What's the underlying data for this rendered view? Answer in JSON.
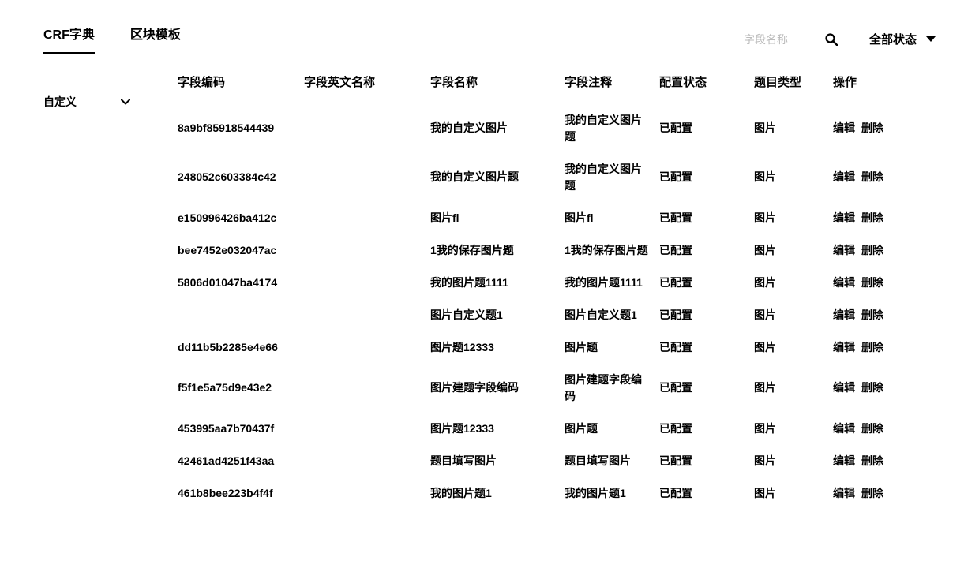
{
  "tabs": {
    "crf_dict": "CRF字典",
    "block_template": "区块模板"
  },
  "search": {
    "placeholder": "字段名称"
  },
  "status_filter": {
    "label": "全部状态"
  },
  "sidebar": {
    "item_custom": "自定义"
  },
  "table": {
    "headers": {
      "code": "字段编码",
      "en_name": "字段英文名称",
      "name": "字段名称",
      "note": "字段注释",
      "config_status": "配置状态",
      "question_type": "题目类型",
      "actions": "操作"
    },
    "action_edit": "编辑",
    "action_delete": "删除",
    "rows": [
      {
        "code": "8a9bf85918544439",
        "en_name": "",
        "name": "我的自定义图片",
        "note": "我的自定义图片题",
        "status": "已配置",
        "type": "图片"
      },
      {
        "code": "248052c603384c42",
        "en_name": "",
        "name": "我的自定义图片题",
        "note": "我的自定义图片题",
        "status": "已配置",
        "type": "图片"
      },
      {
        "code": "e150996426ba412c",
        "en_name": "",
        "name": "图片fl",
        "note": "图片fl",
        "status": "已配置",
        "type": "图片"
      },
      {
        "code": "bee7452e032047ac",
        "en_name": "",
        "name": "1我的保存图片题",
        "note": "1我的保存图片题",
        "status": "已配置",
        "type": "图片"
      },
      {
        "code": "5806d01047ba4174",
        "en_name": "",
        "name": "我的图片题1111",
        "note": "我的图片题1111",
        "status": "已配置",
        "type": "图片"
      },
      {
        "code": "",
        "en_name": "",
        "name": "图片自定义题1",
        "note": "图片自定义题1",
        "status": "已配置",
        "type": "图片"
      },
      {
        "code": "dd11b5b2285e4e66",
        "en_name": "",
        "name": "图片题12333",
        "note": "图片题",
        "status": "已配置",
        "type": "图片"
      },
      {
        "code": "f5f1e5a75d9e43e2",
        "en_name": "",
        "name": "图片建题字段编码",
        "note": "图片建题字段编码",
        "status": "已配置",
        "type": "图片"
      },
      {
        "code": "453995aa7b70437f",
        "en_name": "",
        "name": "图片题12333",
        "note": "图片题",
        "status": "已配置",
        "type": "图片"
      },
      {
        "code": "42461ad4251f43aa",
        "en_name": "",
        "name": "题目填写图片",
        "note": "题目填写图片",
        "status": "已配置",
        "type": "图片"
      },
      {
        "code": "461b8bee223b4f4f",
        "en_name": "",
        "name": "我的图片题1",
        "note": "我的图片题1",
        "status": "已配置",
        "type": "图片"
      }
    ]
  }
}
